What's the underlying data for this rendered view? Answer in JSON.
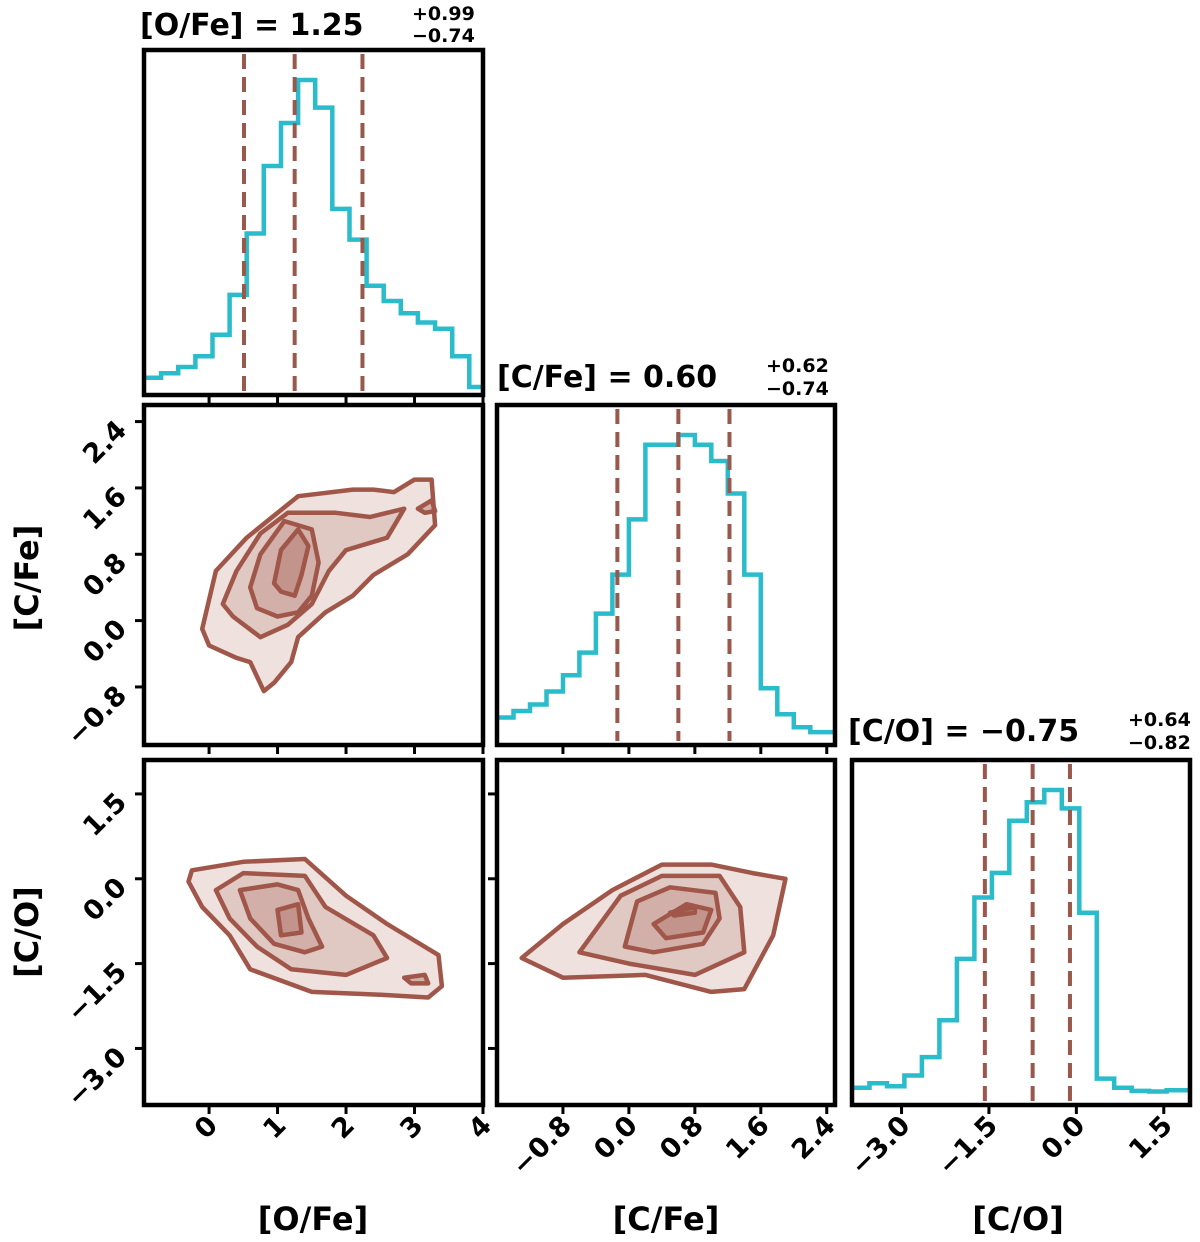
{
  "colors": {
    "histogram": "#2bbccb",
    "quantile": "#98584b",
    "contour_line": "#a0574a",
    "contour_fill": "#a0574a"
  },
  "chart_data": [
    {
      "type": "histogram",
      "panel": "O/Fe marginal",
      "title_main": "[O/Fe] = 1.25",
      "title_sup": "+0.99",
      "title_sub": "−0.74",
      "xlim": [
        -0.95,
        4.0
      ],
      "bin_edges": [
        -0.95,
        -0.7,
        -0.45,
        -0.2,
        0.05,
        0.3,
        0.55,
        0.8,
        1.05,
        1.3,
        1.55,
        1.8,
        2.05,
        2.3,
        2.55,
        2.8,
        3.05,
        3.3,
        3.55,
        3.8,
        4.0
      ],
      "counts": [
        0.03,
        0.045,
        0.065,
        0.1,
        0.17,
        0.3,
        0.5,
        0.72,
        0.86,
        1.0,
        0.91,
        0.58,
        0.48,
        0.33,
        0.28,
        0.24,
        0.21,
        0.19,
        0.1,
        0.0
      ],
      "quantiles": [
        0.51,
        1.25,
        2.24
      ]
    },
    {
      "type": "histogram",
      "panel": "C/Fe marginal",
      "title_main": "[C/Fe] = 0.60",
      "title_sup": "+0.62",
      "title_sub": "−0.74",
      "xlim": [
        -1.6,
        2.5
      ],
      "bin_edges": [
        -1.6,
        -1.4,
        -1.2,
        -1.0,
        -0.8,
        -0.6,
        -0.4,
        -0.2,
        0.0,
        0.2,
        0.4,
        0.6,
        0.8,
        1.0,
        1.2,
        1.4,
        1.6,
        1.8,
        2.0,
        2.2,
        2.5
      ],
      "counts": [
        0.06,
        0.08,
        0.1,
        0.14,
        0.19,
        0.26,
        0.38,
        0.5,
        0.67,
        0.9,
        0.9,
        0.93,
        0.9,
        0.85,
        0.75,
        0.5,
        0.15,
        0.07,
        0.03,
        0.015
      ],
      "quantiles": [
        -0.14,
        0.6,
        1.22
      ]
    },
    {
      "type": "histogram",
      "panel": "C/O marginal",
      "title_main": "[C/O] = −0.75",
      "title_sup": "+0.64",
      "title_sub": "−0.82",
      "xlim": [
        -3.85,
        1.95
      ],
      "bin_edges": [
        -3.85,
        -3.55,
        -3.25,
        -2.95,
        -2.65,
        -2.35,
        -2.05,
        -1.75,
        -1.45,
        -1.15,
        -0.85,
        -0.55,
        -0.25,
        0.05,
        0.35,
        0.65,
        0.95,
        1.25,
        1.55,
        1.95
      ],
      "counts": [
        0.03,
        0.045,
        0.035,
        0.07,
        0.13,
        0.25,
        0.45,
        0.65,
        0.73,
        0.9,
        0.96,
        1.0,
        0.94,
        0.6,
        0.06,
        0.03,
        0.02,
        0.018,
        0.022
      ],
      "quantiles": [
        -1.57,
        -0.75,
        -0.11
      ]
    },
    {
      "type": "contour",
      "panel": "C/Fe vs O/Fe",
      "xlabel": "[O/Fe]",
      "ylabel": "[C/Fe]",
      "xlim": [
        -0.95,
        4.0
      ],
      "ylim": [
        -1.5,
        2.6
      ],
      "contours": [
        [
          [
            -0.1,
            -0.1
          ],
          [
            0.1,
            0.6
          ],
          [
            0.55,
            1.0
          ],
          [
            1.3,
            1.5
          ],
          [
            2.1,
            1.58
          ],
          [
            2.4,
            1.58
          ],
          [
            2.7,
            1.55
          ],
          [
            3.0,
            1.7
          ],
          [
            3.25,
            1.7
          ],
          [
            3.3,
            1.15
          ],
          [
            2.9,
            0.8
          ],
          [
            2.4,
            0.55
          ],
          [
            2.1,
            0.3
          ],
          [
            1.7,
            0.1
          ],
          [
            1.3,
            -0.2
          ],
          [
            1.2,
            -0.5
          ],
          [
            0.95,
            -0.75
          ],
          [
            0.8,
            -0.85
          ],
          [
            0.6,
            -0.5
          ],
          [
            0.4,
            -0.45
          ],
          [
            0.0,
            -0.3
          ]
        ],
        [
          [
            0.2,
            0.2
          ],
          [
            0.4,
            0.6
          ],
          [
            0.75,
            1.05
          ],
          [
            1.15,
            1.3
          ],
          [
            1.85,
            1.3
          ],
          [
            2.35,
            1.25
          ],
          [
            2.85,
            1.35
          ],
          [
            2.6,
            1.0
          ],
          [
            2.0,
            0.85
          ],
          [
            1.75,
            0.6
          ],
          [
            1.5,
            0.2
          ],
          [
            1.15,
            -0.05
          ],
          [
            0.75,
            -0.2
          ],
          [
            0.35,
            0.05
          ]
        ],
        [
          [
            0.6,
            0.4
          ],
          [
            0.75,
            0.8
          ],
          [
            1.1,
            1.2
          ],
          [
            1.5,
            1.1
          ],
          [
            1.6,
            0.7
          ],
          [
            1.5,
            0.3
          ],
          [
            1.3,
            0.1
          ],
          [
            1.0,
            0.05
          ],
          [
            0.7,
            0.15
          ]
        ],
        [
          [
            0.95,
            0.45
          ],
          [
            1.05,
            0.85
          ],
          [
            1.3,
            1.1
          ],
          [
            1.45,
            0.9
          ],
          [
            1.35,
            0.55
          ],
          [
            1.25,
            0.3
          ],
          [
            1.05,
            0.35
          ]
        ],
        [
          [
            3.05,
            1.35
          ],
          [
            3.25,
            1.45
          ],
          [
            3.3,
            1.32
          ],
          [
            3.15,
            1.3
          ]
        ]
      ]
    },
    {
      "type": "contour",
      "panel": "C/O vs O/Fe",
      "xlabel": "[O/Fe]",
      "ylabel": "[C/O]",
      "xlim": [
        -0.95,
        4.0
      ],
      "ylim": [
        -4.0,
        2.1
      ],
      "contours": [
        [
          [
            -0.3,
            -0.05
          ],
          [
            -0.25,
            0.15
          ],
          [
            0.5,
            0.3
          ],
          [
            1.4,
            0.35
          ],
          [
            2.0,
            -0.3
          ],
          [
            2.6,
            -0.8
          ],
          [
            3.35,
            -1.35
          ],
          [
            3.4,
            -1.9
          ],
          [
            3.2,
            -2.1
          ],
          [
            2.5,
            -2.05
          ],
          [
            1.5,
            -2.0
          ],
          [
            0.6,
            -1.6
          ],
          [
            0.3,
            -1.0
          ],
          [
            -0.1,
            -0.5
          ]
        ],
        [
          [
            0.1,
            -0.2
          ],
          [
            0.5,
            0.1
          ],
          [
            1.4,
            0.05
          ],
          [
            1.7,
            -0.5
          ],
          [
            2.4,
            -1.0
          ],
          [
            2.6,
            -1.4
          ],
          [
            2.0,
            -1.7
          ],
          [
            1.2,
            -1.6
          ],
          [
            0.7,
            -1.2
          ],
          [
            0.3,
            -0.7
          ]
        ],
        [
          [
            0.45,
            -0.2
          ],
          [
            1.0,
            -0.1
          ],
          [
            1.3,
            -0.2
          ],
          [
            1.45,
            -0.7
          ],
          [
            1.65,
            -1.2
          ],
          [
            1.4,
            -1.3
          ],
          [
            0.95,
            -1.15
          ],
          [
            0.6,
            -0.7
          ]
        ],
        [
          [
            1.0,
            -0.55
          ],
          [
            1.3,
            -0.45
          ],
          [
            1.35,
            -0.95
          ],
          [
            1.05,
            -1.0
          ]
        ],
        [
          [
            2.85,
            -1.75
          ],
          [
            3.15,
            -1.7
          ],
          [
            3.2,
            -1.85
          ],
          [
            2.95,
            -1.85
          ]
        ]
      ]
    },
    {
      "type": "contour",
      "panel": "C/O vs C/Fe",
      "xlabel": "[C/Fe]",
      "ylabel": "[C/O]",
      "xlim": [
        -1.6,
        2.5
      ],
      "ylim": [
        -4.0,
        2.1
      ],
      "contours": [
        [
          [
            -1.3,
            -1.4
          ],
          [
            -0.8,
            -0.8
          ],
          [
            -0.2,
            -0.2
          ],
          [
            0.4,
            0.25
          ],
          [
            1.0,
            0.25
          ],
          [
            1.5,
            0.1
          ],
          [
            1.9,
            0.0
          ],
          [
            1.75,
            -1.0
          ],
          [
            1.4,
            -1.95
          ],
          [
            1.0,
            -2.0
          ],
          [
            0.2,
            -1.7
          ],
          [
            -0.8,
            -1.75
          ]
        ],
        [
          [
            -0.6,
            -1.3
          ],
          [
            -0.1,
            -0.3
          ],
          [
            0.4,
            0.05
          ],
          [
            1.1,
            0.05
          ],
          [
            1.35,
            -0.5
          ],
          [
            1.4,
            -1.3
          ],
          [
            0.8,
            -1.7
          ],
          [
            0.0,
            -1.5
          ]
        ],
        [
          [
            -0.05,
            -1.2
          ],
          [
            0.1,
            -0.4
          ],
          [
            0.5,
            -0.15
          ],
          [
            1.05,
            -0.25
          ],
          [
            1.1,
            -0.7
          ],
          [
            0.9,
            -1.15
          ],
          [
            0.3,
            -1.3
          ]
        ],
        [
          [
            0.3,
            -0.8
          ],
          [
            0.7,
            -0.45
          ],
          [
            1.0,
            -0.55
          ],
          [
            0.9,
            -0.95
          ],
          [
            0.45,
            -1.05
          ]
        ],
        [
          [
            0.5,
            -0.6
          ],
          [
            0.8,
            -0.5
          ],
          [
            0.8,
            -0.6
          ],
          [
            0.55,
            -0.65
          ]
        ]
      ]
    }
  ],
  "axes": {
    "o_fe_xticks": [
      "0",
      "1",
      "2",
      "3",
      "4"
    ],
    "c_fe_xticks": [
      "−0.8",
      "0.0",
      "0.8",
      "1.6",
      "2.4"
    ],
    "c_o_xticks": [
      "−3.0",
      "−1.5",
      "0.0",
      "1.5"
    ],
    "c_fe_yticks": [
      "2.4",
      "1.6",
      "0.8",
      "0.0",
      "−0.8"
    ],
    "c_o_yticks": [
      "1.5",
      "0.0",
      "−1.5",
      "−3.0"
    ],
    "xlabel_ofe": "[O/Fe]",
    "xlabel_cfe": "[C/Fe]",
    "xlabel_co": "[C/O]",
    "ylabel_cfe": "[C/Fe]",
    "ylabel_co": "[C/O]"
  }
}
